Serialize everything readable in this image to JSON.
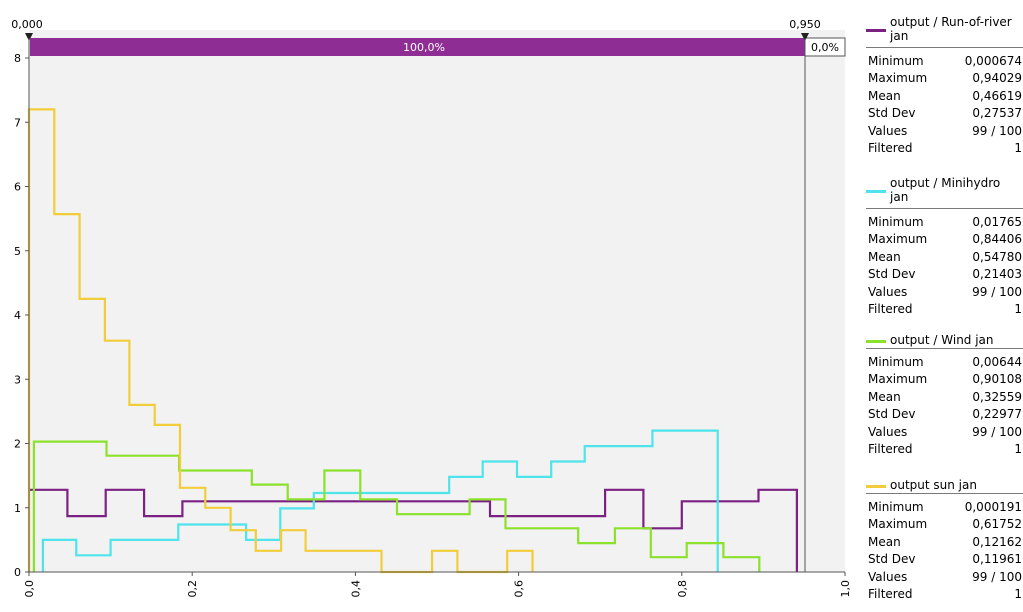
{
  "filter_bar": {
    "left_value": "0,000",
    "right_value": "0,950",
    "inside_percent": "100,0%",
    "outside_percent": "0,0%"
  },
  "legend": [
    {
      "title_line1": "output / Run-of-river",
      "title_line2": "jan",
      "color": "#7b2183",
      "stats": [
        [
          "Minimum",
          "0,000674"
        ],
        [
          "Maximum",
          "0,94029"
        ],
        [
          "Mean",
          "0,46619"
        ],
        [
          "Std Dev",
          "0,27537"
        ],
        [
          "Values",
          "99 / 100"
        ],
        [
          "Filtered",
          "1"
        ]
      ]
    },
    {
      "title_line1": "output / Minihydro",
      "title_line2": "jan",
      "color": "#4fe3ec",
      "stats": [
        [
          "Minimum",
          "0,01765"
        ],
        [
          "Maximum",
          "0,84406"
        ],
        [
          "Mean",
          "0,54780"
        ],
        [
          "Std Dev",
          "0,21403"
        ],
        [
          "Values",
          "99 / 100"
        ],
        [
          "Filtered",
          "1"
        ]
      ]
    },
    {
      "title_line1": "output / Wind jan",
      "title_line2": "",
      "color": "#8be12b",
      "stats": [
        [
          "Minimum",
          "0,00644"
        ],
        [
          "Maximum",
          "0,90108"
        ],
        [
          "Mean",
          "0,32559"
        ],
        [
          "Std Dev",
          "0,22977"
        ],
        [
          "Values",
          "99 / 100"
        ],
        [
          "Filtered",
          "1"
        ]
      ]
    },
    {
      "title_line1": "output sun jan",
      "title_line2": "",
      "color": "#f2cd3a",
      "stats": [
        [
          "Minimum",
          "0,000191"
        ],
        [
          "Maximum",
          "0,61752"
        ],
        [
          "Mean",
          "0,12162"
        ],
        [
          "Std Dev",
          "0,11961"
        ],
        [
          "Values",
          "99 / 100"
        ],
        [
          "Filtered",
          "1"
        ]
      ]
    }
  ],
  "chart_data": {
    "type": "step",
    "xlim": [
      0,
      1.0
    ],
    "ylim": [
      0,
      8
    ],
    "x_ticks": [
      "0,0",
      "0,2",
      "0,4",
      "0,6",
      "0,8",
      "1,0"
    ],
    "x_tick_values": [
      0,
      0.2,
      0.4,
      0.6,
      0.8,
      1.0
    ],
    "y_ticks": [
      "0",
      "1",
      "2",
      "3",
      "4",
      "5",
      "6",
      "7",
      "8"
    ],
    "y_tick_values": [
      0,
      1,
      2,
      3,
      4,
      5,
      6,
      7,
      8
    ],
    "filter_range": [
      0.0,
      0.95
    ],
    "series": [
      {
        "name": "output / Run-of-river jan",
        "color": "#7b2183",
        "points": [
          [
            0.0,
            1.28
          ],
          [
            0.047,
            1.28
          ],
          [
            0.047,
            0.87
          ],
          [
            0.094,
            0.87
          ],
          [
            0.094,
            1.28
          ],
          [
            0.141,
            1.28
          ],
          [
            0.141,
            0.87
          ],
          [
            0.188,
            0.87
          ],
          [
            0.188,
            1.1
          ],
          [
            0.565,
            1.1
          ],
          [
            0.565,
            0.87
          ],
          [
            0.706,
            0.87
          ],
          [
            0.706,
            1.28
          ],
          [
            0.753,
            1.28
          ],
          [
            0.753,
            0.68
          ],
          [
            0.8,
            0.68
          ],
          [
            0.8,
            1.1
          ],
          [
            0.894,
            1.1
          ],
          [
            0.894,
            1.28
          ],
          [
            0.941,
            1.28
          ],
          [
            0.941,
            0.0
          ]
        ]
      },
      {
        "name": "output / Minihydro jan",
        "color": "#4fe3ec",
        "points": [
          [
            0.017,
            0.0
          ],
          [
            0.017,
            0.5
          ],
          [
            0.058,
            0.5
          ],
          [
            0.058,
            0.26
          ],
          [
            0.1,
            0.26
          ],
          [
            0.1,
            0.5
          ],
          [
            0.183,
            0.5
          ],
          [
            0.183,
            0.74
          ],
          [
            0.266,
            0.74
          ],
          [
            0.266,
            0.5
          ],
          [
            0.308,
            0.5
          ],
          [
            0.308,
            0.99
          ],
          [
            0.349,
            0.99
          ],
          [
            0.349,
            1.23
          ],
          [
            0.515,
            1.23
          ],
          [
            0.515,
            1.48
          ],
          [
            0.556,
            1.48
          ],
          [
            0.556,
            1.72
          ],
          [
            0.598,
            1.72
          ],
          [
            0.598,
            1.48
          ],
          [
            0.64,
            1.48
          ],
          [
            0.64,
            1.72
          ],
          [
            0.681,
            1.72
          ],
          [
            0.681,
            1.96
          ],
          [
            0.764,
            1.96
          ],
          [
            0.764,
            2.2
          ],
          [
            0.844,
            2.2
          ],
          [
            0.844,
            0.0
          ]
        ]
      },
      {
        "name": "output / Wind jan",
        "color": "#8be12b",
        "points": [
          [
            0.006,
            0.0
          ],
          [
            0.006,
            2.03
          ],
          [
            0.095,
            2.03
          ],
          [
            0.095,
            1.81
          ],
          [
            0.184,
            1.81
          ],
          [
            0.184,
            1.58
          ],
          [
            0.273,
            1.58
          ],
          [
            0.273,
            1.36
          ],
          [
            0.317,
            1.36
          ],
          [
            0.317,
            1.13
          ],
          [
            0.362,
            1.13
          ],
          [
            0.362,
            1.58
          ],
          [
            0.406,
            1.58
          ],
          [
            0.406,
            1.13
          ],
          [
            0.451,
            1.13
          ],
          [
            0.451,
            0.9
          ],
          [
            0.54,
            0.9
          ],
          [
            0.54,
            1.13
          ],
          [
            0.584,
            1.13
          ],
          [
            0.584,
            0.68
          ],
          [
            0.673,
            0.68
          ],
          [
            0.673,
            0.45
          ],
          [
            0.718,
            0.45
          ],
          [
            0.718,
            0.68
          ],
          [
            0.762,
            0.68
          ],
          [
            0.762,
            0.23
          ],
          [
            0.806,
            0.23
          ],
          [
            0.806,
            0.45
          ],
          [
            0.851,
            0.45
          ],
          [
            0.851,
            0.23
          ],
          [
            0.895,
            0.23
          ],
          [
            0.895,
            0.0
          ]
        ]
      },
      {
        "name": "output sun jan",
        "color": "#f2cd3a",
        "points": [
          [
            0.0,
            0.0
          ],
          [
            0.0,
            7.2
          ],
          [
            0.031,
            7.2
          ],
          [
            0.031,
            5.57
          ],
          [
            0.062,
            5.57
          ],
          [
            0.062,
            4.25
          ],
          [
            0.093,
            4.25
          ],
          [
            0.093,
            3.6
          ],
          [
            0.123,
            3.6
          ],
          [
            0.123,
            2.6
          ],
          [
            0.154,
            2.6
          ],
          [
            0.154,
            2.29
          ],
          [
            0.185,
            2.29
          ],
          [
            0.185,
            1.31
          ],
          [
            0.216,
            1.31
          ],
          [
            0.216,
            1.0
          ],
          [
            0.247,
            1.0
          ],
          [
            0.247,
            0.65
          ],
          [
            0.278,
            0.65
          ],
          [
            0.278,
            0.33
          ],
          [
            0.309,
            0.33
          ],
          [
            0.309,
            0.65
          ],
          [
            0.339,
            0.65
          ],
          [
            0.339,
            0.33
          ],
          [
            0.432,
            0.33
          ],
          [
            0.432,
            0.0
          ],
          [
            0.494,
            0.0
          ],
          [
            0.494,
            0.33
          ],
          [
            0.525,
            0.33
          ],
          [
            0.525,
            0.0
          ],
          [
            0.586,
            0.0
          ],
          [
            0.586,
            0.33
          ],
          [
            0.617,
            0.33
          ],
          [
            0.617,
            0.0
          ]
        ]
      }
    ]
  }
}
